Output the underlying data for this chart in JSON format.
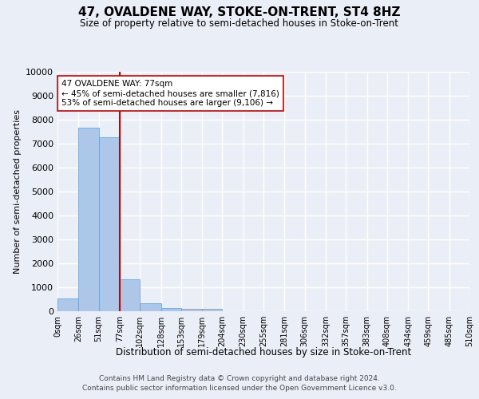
{
  "title": "47, OVALDENE WAY, STOKE-ON-TRENT, ST4 8HZ",
  "subtitle": "Size of property relative to semi-detached houses in Stoke-on-Trent",
  "xlabel": "Distribution of semi-detached houses by size in Stoke-on-Trent",
  "ylabel": "Number of semi-detached properties",
  "footer_line1": "Contains HM Land Registry data © Crown copyright and database right 2024.",
  "footer_line2": "Contains public sector information licensed under the Open Government Licence v3.0.",
  "property_label": "47 OVALDENE WAY: 77sqm",
  "annotation_smaller": "← 45% of semi-detached houses are smaller (7,816)",
  "annotation_larger": "53% of semi-detached houses are larger (9,106) →",
  "bin_edges": [
    0,
    26,
    51,
    77,
    102,
    128,
    153,
    179,
    204,
    230,
    255,
    281,
    306,
    332,
    357,
    383,
    408,
    434,
    459,
    485,
    510
  ],
  "bin_labels": [
    "0sqm",
    "26sqm",
    "51sqm",
    "77sqm",
    "102sqm",
    "128sqm",
    "153sqm",
    "179sqm",
    "204sqm",
    "230sqm",
    "255sqm",
    "281sqm",
    "306sqm",
    "332sqm",
    "357sqm",
    "383sqm",
    "408sqm",
    "434sqm",
    "459sqm",
    "485sqm",
    "510sqm"
  ],
  "bar_heights": [
    550,
    7650,
    7250,
    1350,
    320,
    150,
    115,
    90,
    0,
    0,
    0,
    0,
    0,
    0,
    0,
    0,
    0,
    0,
    0,
    0
  ],
  "bar_color": "#aec6e8",
  "bar_edge_color": "#5b9bd5",
  "vline_color": "#cc0000",
  "vline_x": 77,
  "annotation_box_color": "#ffffff",
  "annotation_box_edge": "#cc0000",
  "ylim": [
    0,
    10000
  ],
  "yticks": [
    0,
    1000,
    2000,
    3000,
    4000,
    5000,
    6000,
    7000,
    8000,
    9000,
    10000
  ],
  "bg_color": "#eaeff7",
  "plot_bg_color": "#eaeff7",
  "grid_color": "#ffffff"
}
